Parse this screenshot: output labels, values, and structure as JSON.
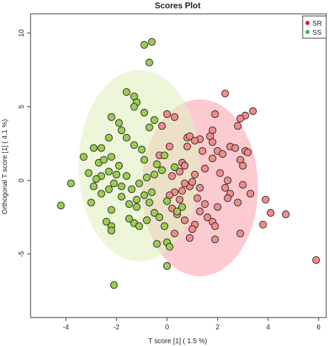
{
  "chart_data": {
    "type": "scatter",
    "title": "Scores Plot",
    "xlabel": "T score [1] ( 1.5 %)",
    "ylabel": "Orthogonal T score [1] ( 4.1 %)",
    "xlim": [
      -5.4,
      6.3
    ],
    "ylim": [
      -9.3,
      11.3
    ],
    "x_ticks": [
      -4,
      -2,
      0,
      2,
      4,
      6
    ],
    "y_ticks": [
      -5,
      0,
      5,
      10
    ],
    "grid": false,
    "legend_position": "top-right",
    "series": [
      {
        "name": "SR",
        "color": "#e41a1c",
        "fill": "#f28b8b",
        "ellipse": {
          "cx": 1.3,
          "cy": -0.5,
          "rx": 2.3,
          "ry": 6.0,
          "fill": "#f9a9b3"
        },
        "points": [
          [
            2.3,
            5.9
          ],
          [
            3.4,
            4.7
          ],
          [
            3.1,
            4.4
          ],
          [
            2.9,
            4.2
          ],
          [
            2.8,
            3.7
          ],
          [
            1.9,
            4.5
          ],
          [
            0.3,
            4.3
          ],
          [
            0.0,
            4.5
          ],
          [
            -0.2,
            3.7
          ],
          [
            1.8,
            3.4
          ],
          [
            1.7,
            3.0
          ],
          [
            1.3,
            2.8
          ],
          [
            1.8,
            2.6
          ],
          [
            2.5,
            2.3
          ],
          [
            2.7,
            2.2
          ],
          [
            3.1,
            2.0
          ],
          [
            3.2,
            1.9
          ],
          [
            2.9,
            1.4
          ],
          [
            3.0,
            1.0
          ],
          [
            2.0,
            2.0
          ],
          [
            2.2,
            1.8
          ],
          [
            1.8,
            1.5
          ],
          [
            1.4,
            2.0
          ],
          [
            0.8,
            2.9
          ],
          [
            0.9,
            3.0
          ],
          [
            1.1,
            2.7
          ],
          [
            0.8,
            2.3
          ],
          [
            0.1,
            2.3
          ],
          [
            -0.3,
            1.7
          ],
          [
            0.6,
            1.2
          ],
          [
            0.7,
            1.0
          ],
          [
            1.5,
            0.8
          ],
          [
            1.1,
            0.4
          ],
          [
            2.1,
            0.5
          ],
          [
            2.4,
            0.0
          ],
          [
            2.3,
            -0.5
          ],
          [
            2.5,
            -0.9
          ],
          [
            2.4,
            -1.2
          ],
          [
            3.0,
            -0.3
          ],
          [
            2.8,
            -1.5
          ],
          [
            3.3,
            -0.9
          ],
          [
            3.9,
            -1.3
          ],
          [
            4.1,
            -2.2
          ],
          [
            3.8,
            -3.0
          ],
          [
            2.9,
            -3.6
          ],
          [
            1.8,
            -2.8
          ],
          [
            1.9,
            -3.1
          ],
          [
            1.6,
            -2.5
          ],
          [
            1.5,
            -1.6
          ],
          [
            1.3,
            -2.1
          ],
          [
            1.2,
            -1.2
          ],
          [
            0.9,
            -0.4
          ],
          [
            0.7,
            -0.2
          ],
          [
            0.6,
            -0.7
          ],
          [
            0.5,
            -1.3
          ],
          [
            0.3,
            -0.8
          ],
          [
            0.1,
            -1.0
          ],
          [
            0.2,
            -1.9
          ],
          [
            0.4,
            -2.3
          ],
          [
            0.7,
            -2.7
          ],
          [
            1.1,
            -3.0
          ],
          [
            1.0,
            -3.3
          ],
          [
            0.3,
            -3.6
          ],
          [
            0.9,
            -3.9
          ],
          [
            4.7,
            -2.3
          ],
          [
            5.9,
            -5.4
          ],
          [
            1.9,
            -4.0
          ],
          [
            1.3,
            -0.5
          ],
          [
            1.0,
            -0.1
          ],
          [
            0.2,
            0.3
          ],
          [
            0.5,
            0.6
          ],
          [
            2.0,
            -1.8
          ]
        ]
      },
      {
        "name": "SS",
        "color": "#4daf4a",
        "fill": "#9acd52",
        "ellipse": {
          "cx": -1.1,
          "cy": 1.0,
          "rx": 2.4,
          "ry": 6.5,
          "fill": "#e3f0c0"
        },
        "points": [
          [
            -0.9,
            9.2
          ],
          [
            -0.6,
            9.4
          ],
          [
            -0.7,
            8.0
          ],
          [
            -1.6,
            6.0
          ],
          [
            -1.3,
            5.7
          ],
          [
            -1.2,
            5.3
          ],
          [
            -1.3,
            5.0
          ],
          [
            -0.9,
            4.6
          ],
          [
            -0.5,
            4.1
          ],
          [
            -0.7,
            3.6
          ],
          [
            -2.2,
            4.3
          ],
          [
            -1.9,
            3.9
          ],
          [
            -1.8,
            3.4
          ],
          [
            -2.3,
            2.9
          ],
          [
            -1.6,
            2.9
          ],
          [
            -1.3,
            2.4
          ],
          [
            -1.0,
            2.1
          ],
          [
            -2.6,
            2.2
          ],
          [
            -2.9,
            2.2
          ],
          [
            -3.3,
            1.6
          ],
          [
            -2.7,
            1.2
          ],
          [
            -2.5,
            1.4
          ],
          [
            -2.2,
            1.6
          ],
          [
            -1.9,
            1.0
          ],
          [
            -2.3,
            0.6
          ],
          [
            -2.0,
            0.4
          ],
          [
            -2.1,
            -0.2
          ],
          [
            -2.6,
            0.3
          ],
          [
            -2.8,
            0.1
          ],
          [
            -2.9,
            -0.4
          ],
          [
            -3.1,
            0.5
          ],
          [
            -3.8,
            -0.2
          ],
          [
            -4.2,
            -1.7
          ],
          [
            -3.0,
            -1.5
          ],
          [
            -2.6,
            -0.9
          ],
          [
            -2.3,
            -0.6
          ],
          [
            -1.8,
            -0.4
          ],
          [
            -1.4,
            -0.6
          ],
          [
            -1.1,
            -0.2
          ],
          [
            -0.8,
            0.2
          ],
          [
            -0.5,
            0.4
          ],
          [
            -0.2,
            0.7
          ],
          [
            -0.4,
            1.1
          ],
          [
            -0.1,
            1.7
          ],
          [
            0.3,
            0.9
          ],
          [
            -0.6,
            -0.8
          ],
          [
            -0.9,
            -1.0
          ],
          [
            -1.2,
            -1.3
          ],
          [
            -1.5,
            -1.6
          ],
          [
            -1.8,
            -1.1
          ],
          [
            -2.2,
            -2.0
          ],
          [
            -2.4,
            -2.8
          ],
          [
            -2.2,
            -3.1
          ],
          [
            -2.2,
            -3.4
          ],
          [
            -1.5,
            -2.6
          ],
          [
            -1.3,
            -2.9
          ],
          [
            -1.1,
            -3.1
          ],
          [
            -0.8,
            -2.7
          ],
          [
            -0.5,
            -2.2
          ],
          [
            -0.3,
            -2.5
          ],
          [
            -0.1,
            -3.1
          ],
          [
            0.4,
            -2.1
          ],
          [
            0.6,
            -1.8
          ],
          [
            0.0,
            -4.2
          ],
          [
            0.1,
            -4.5
          ],
          [
            -0.4,
            -4.3
          ],
          [
            0.0,
            -5.8
          ],
          [
            -2.1,
            -7.1
          ],
          [
            -1.2,
            -1.8
          ],
          [
            -0.7,
            -1.5
          ],
          [
            -1.6,
            0.3
          ],
          [
            -0.9,
            1.4
          ],
          [
            0.0,
            -1.4
          ]
        ]
      }
    ]
  }
}
